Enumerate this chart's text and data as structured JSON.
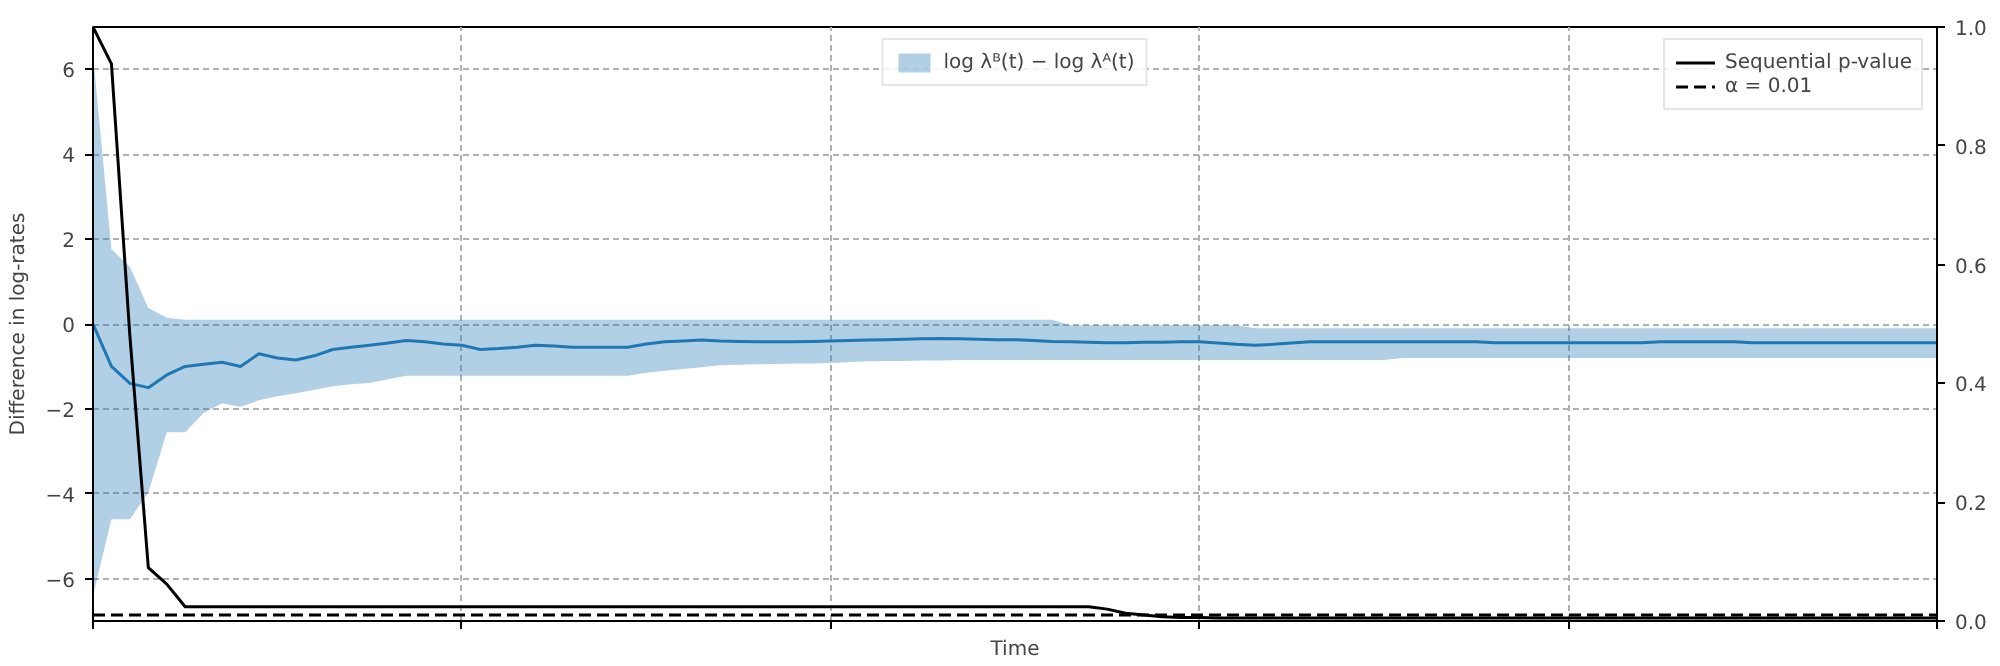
{
  "chart_data": {
    "type": "line",
    "xlabel": "Time",
    "ylabel": "Difference in log-rates",
    "categories": [
      null,
      null,
      null,
      null,
      null,
      null,
      null,
      null,
      null,
      null,
      null,
      null,
      null,
      null,
      null,
      null,
      null,
      null,
      null,
      null,
      null,
      null,
      null,
      null,
      null,
      null,
      null,
      null,
      null,
      null,
      null,
      null,
      null,
      null,
      null,
      null,
      null,
      null,
      null,
      null,
      null,
      null,
      null,
      null,
      null,
      null,
      null,
      null,
      null,
      null,
      null,
      null,
      null,
      null,
      null,
      null,
      null,
      null,
      null,
      null,
      null,
      null,
      null,
      null,
      null,
      null,
      null,
      null,
      null,
      null,
      null,
      null,
      null,
      null,
      null,
      null,
      null,
      null,
      null,
      null,
      null,
      null,
      null,
      null,
      null,
      null,
      null,
      null,
      null,
      null,
      null,
      null,
      null,
      null,
      null,
      null,
      null,
      null,
      null,
      null,
      null
    ],
    "ylim": [
      -7,
      7
    ],
    "yticks": [
      -6,
      -4,
      -2,
      0,
      2,
      4,
      6
    ],
    "y2lim": [
      0,
      1
    ],
    "y2ticks": [
      {
        "value": 0,
        "label": "0.0"
      },
      {
        "value": 0.2,
        "label": "0.2"
      },
      {
        "value": 0.4,
        "label": "0.4"
      },
      {
        "value": 0.6,
        "label": "0.6"
      },
      {
        "value": 0.8,
        "label": "0.8"
      },
      {
        "value": 1,
        "label": "1.0"
      }
    ],
    "tick_labels": "y",
    "grid": true,
    "legend": "top right",
    "line_style": "solid",
    "series": [
      {
        "name": "log λᴮ(t) − log λᴬ(t)",
        "color": "#1f77b4",
        "values": [
          0,
          -1.0,
          -1.4,
          -1.5,
          -1.2,
          -1.0,
          -0.95,
          -0.9,
          -1.0,
          -0.7,
          -0.8,
          -0.85,
          -0.75,
          -0.6,
          -0.55,
          -0.5,
          -0.45,
          -0.39,
          -0.42,
          -0.47,
          -0.5,
          -0.6,
          -0.58,
          -0.55,
          -0.5,
          -0.52,
          -0.55,
          -0.55,
          -0.55,
          -0.55,
          -0.47,
          -0.42,
          -0.4,
          -0.38,
          -0.4,
          -0.41,
          -0.42,
          -0.42,
          -0.42,
          -0.41,
          -0.4,
          -0.39,
          -0.38,
          -0.37,
          -0.36,
          -0.35,
          -0.34,
          -0.35,
          -0.36,
          -0.37,
          -0.37,
          -0.39,
          -0.41,
          -0.42,
          -0.43,
          -0.44,
          -0.44,
          -0.43,
          -0.43,
          -0.42,
          -0.42,
          -0.45,
          -0.48,
          -0.5,
          -0.48,
          -0.45,
          -0.42,
          -0.42,
          -0.42,
          -0.42,
          -0.42,
          -0.42,
          -0.42,
          -0.42,
          -0.42,
          -0.42,
          -0.44,
          -0.44,
          -0.44,
          -0.44,
          -0.44,
          -0.44,
          -0.44,
          -0.44,
          -0.44,
          -0.42,
          -0.42,
          -0.42,
          -0.42,
          -0.42,
          -0.44,
          -0.44,
          -0.44,
          -0.44,
          -0.44,
          -0.44,
          -0.44,
          -0.44,
          -0.44,
          -0.44,
          -0.44
        ],
        "lower": [
          -6.4,
          -4.6,
          -4.6,
          -3.97,
          -2.55,
          -2.55,
          -2.1,
          -1.87,
          -1.95,
          -1.8,
          -1.7,
          -1.63,
          -1.55,
          -1.47,
          -1.42,
          -1.39,
          -1.3,
          -1.22,
          -1.22,
          -1.22,
          -1.22,
          -1.22,
          -1.22,
          -1.22,
          -1.22,
          -1.22,
          -1.22,
          -1.22,
          -1.22,
          -1.22,
          -1.15,
          -1.1,
          -1.06,
          -1.02,
          -0.97,
          -0.96,
          -0.95,
          -0.94,
          -0.93,
          -0.93,
          -0.92,
          -0.9,
          -0.88,
          -0.87,
          -0.87,
          -0.86,
          -0.86,
          -0.85,
          -0.85,
          -0.85,
          -0.85,
          -0.85,
          -0.85,
          -0.85,
          -0.85,
          -0.85,
          -0.85,
          -0.85,
          -0.85,
          -0.85,
          -0.85,
          -0.85,
          -0.85,
          -0.85,
          -0.85,
          -0.85,
          -0.85,
          -0.85,
          -0.85,
          -0.85,
          -0.85,
          -0.8,
          -0.8,
          -0.8,
          -0.8,
          -0.8,
          -0.8,
          -0.8,
          -0.8,
          -0.8,
          -0.8,
          -0.8,
          -0.8,
          -0.8,
          -0.8,
          -0.8,
          -0.8,
          -0.8,
          -0.8,
          -0.8,
          -0.8,
          -0.8,
          -0.8,
          -0.8,
          -0.8,
          -0.8,
          -0.8,
          -0.8,
          -0.8,
          -0.8,
          -0.8
        ],
        "upper": [
          6.35,
          1.76,
          1.35,
          0.38,
          0.15,
          0.1,
          0.1,
          0.1,
          0.1,
          0.1,
          0.1,
          0.1,
          0.1,
          0.1,
          0.1,
          0.1,
          0.1,
          0.1,
          0.1,
          0.1,
          0.1,
          0.1,
          0.1,
          0.1,
          0.1,
          0.1,
          0.1,
          0.1,
          0.1,
          0.1,
          0.1,
          0.1,
          0.1,
          0.1,
          0.1,
          0.1,
          0.1,
          0.1,
          0.1,
          0.1,
          0.1,
          0.1,
          0.1,
          0.1,
          0.1,
          0.1,
          0.1,
          0.1,
          0.1,
          0.1,
          0.1,
          0.1,
          0.1,
          -0.03,
          -0.03,
          -0.03,
          -0.03,
          -0.03,
          -0.03,
          -0.03,
          -0.03,
          -0.03,
          -0.03,
          -0.1,
          -0.1,
          -0.1,
          -0.1,
          -0.1,
          -0.1,
          -0.1,
          -0.1,
          -0.1,
          -0.1,
          -0.1,
          -0.1,
          -0.1,
          -0.1,
          -0.1,
          -0.1,
          -0.1,
          -0.1,
          -0.1,
          -0.1,
          -0.1,
          -0.1,
          -0.1,
          -0.1,
          -0.1,
          -0.1,
          -0.1,
          -0.1,
          -0.1,
          -0.1,
          -0.1,
          -0.1,
          -0.1,
          -0.1,
          -0.1,
          -0.1,
          -0.1,
          -0.1
        ]
      },
      {
        "name": "Sequential p-value",
        "color": "#000000",
        "axis": "y2",
        "values": [
          1.0,
          0.938,
          0.48,
          0.09,
          0.062,
          0.024,
          0.024,
          0.024,
          0.024,
          0.024,
          0.024,
          0.024,
          0.024,
          0.024,
          0.024,
          0.024,
          0.024,
          0.024,
          0.024,
          0.024,
          0.024,
          0.024,
          0.024,
          0.024,
          0.024,
          0.024,
          0.024,
          0.024,
          0.024,
          0.024,
          0.024,
          0.024,
          0.024,
          0.024,
          0.024,
          0.024,
          0.024,
          0.024,
          0.024,
          0.024,
          0.024,
          0.024,
          0.024,
          0.024,
          0.024,
          0.024,
          0.024,
          0.024,
          0.024,
          0.024,
          0.024,
          0.024,
          0.024,
          0.024,
          0.024,
          0.02,
          0.013,
          0.01,
          0.007,
          0.006,
          0.006,
          0.005,
          0.005,
          0.005,
          0.005,
          0.005,
          0.005,
          0.005,
          0.005,
          0.005,
          0.005,
          0.005,
          0.005,
          0.005,
          0.005,
          0.005,
          0.005,
          0.005,
          0.005,
          0.005,
          0.005,
          0.005,
          0.005,
          0.005,
          0.005,
          0.005,
          0.005,
          0.005,
          0.005,
          0.005,
          0.005,
          0.005,
          0.005,
          0.005,
          0.005,
          0.005,
          0.005,
          0.005,
          0.005,
          0.005,
          0.005
        ]
      }
    ],
    "ref_lines": [
      {
        "axis": "y2",
        "value": 0.01,
        "label": "α = 0.01",
        "color": "#000000",
        "line_style": "dashed"
      }
    ]
  }
}
